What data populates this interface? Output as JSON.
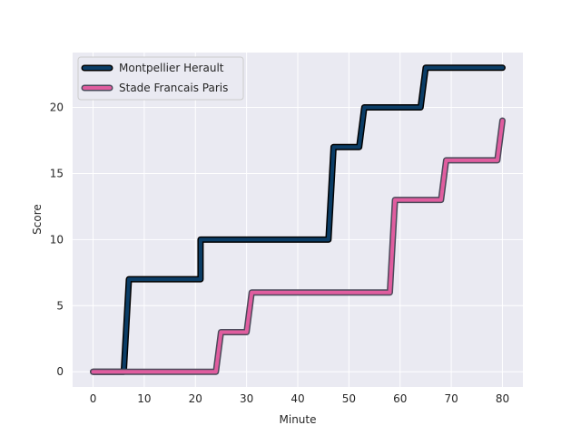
{
  "chart_data": {
    "type": "line",
    "title": "",
    "xlabel": "Minute",
    "ylabel": "Score",
    "xlim": [
      -4,
      84
    ],
    "ylim": [
      -1.15,
      24.15
    ],
    "x_ticks": [
      0,
      10,
      20,
      30,
      40,
      50,
      60,
      70,
      80
    ],
    "y_ticks": [
      0,
      5,
      10,
      15,
      20
    ],
    "grid": true,
    "legend_position": "top-left",
    "series": [
      {
        "name": "Montpellier Herault",
        "color": "#0b3d66",
        "outline_color": "#000000",
        "points": [
          [
            0,
            0
          ],
          [
            6,
            0
          ],
          [
            7,
            7
          ],
          [
            21,
            7
          ],
          [
            21,
            10
          ],
          [
            46,
            10
          ],
          [
            47,
            17
          ],
          [
            52,
            17
          ],
          [
            53,
            20
          ],
          [
            64,
            20
          ],
          [
            65,
            23
          ],
          [
            80,
            23
          ]
        ]
      },
      {
        "name": "Stade Francais Paris",
        "color": "#e05d9f",
        "outline_color": "#4a4a5a",
        "points": [
          [
            0,
            0
          ],
          [
            24,
            0
          ],
          [
            25,
            3
          ],
          [
            30,
            3
          ],
          [
            31,
            6
          ],
          [
            58,
            6
          ],
          [
            59,
            13
          ],
          [
            68,
            13
          ],
          [
            69,
            16
          ],
          [
            79,
            16
          ],
          [
            80,
            19
          ]
        ]
      }
    ]
  }
}
